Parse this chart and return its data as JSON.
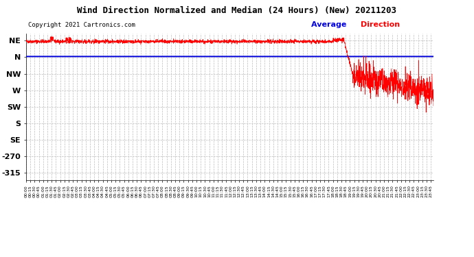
{
  "title": "Wind Direction Normalized and Median (24 Hours) (New) 20211203",
  "copyright": "Copyright 2021 Cartronics.com",
  "legend_blue_text": "Average ",
  "legend_red_text": "Direction",
  "bg_color": "#ffffff",
  "grid_color": "#bbbbbb",
  "title_color": "#000000",
  "copyright_color": "#000000",
  "blue_color": "#0000dd",
  "red_color": "#ff0000",
  "avg_value": 2.0,
  "ytick_values": [
    45,
    0,
    -45,
    -90,
    -135,
    -180,
    -225,
    -270,
    -315
  ],
  "ytick_labels": [
    "NE",
    "N",
    "NW",
    "W",
    "SW",
    "S",
    "SE",
    "-270",
    "-315"
  ],
  "ymax": 65,
  "ymin": -335,
  "xmin": 0,
  "xmax": 1435
}
